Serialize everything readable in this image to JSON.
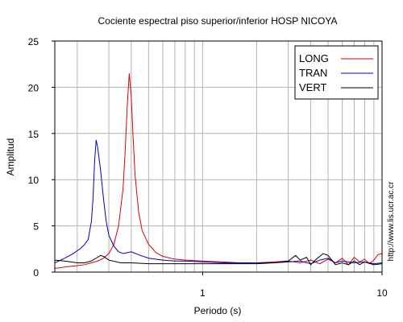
{
  "chart_data": {
    "type": "line",
    "title": "Cociente espectral piso superior/inferior  HOSP NICOYA",
    "xlabel": "Periodo (s)",
    "ylabel": "Amplitud",
    "xscale": "log",
    "xlim": [
      0.15,
      10
    ],
    "ylim": [
      0,
      25
    ],
    "x_tick_labels": [
      "1",
      "10"
    ],
    "y_tick_labels": [
      "0",
      "5",
      "10",
      "15",
      "20",
      "25"
    ],
    "grid": true,
    "legend_position": "top-right",
    "series": [
      {
        "name": "LONG",
        "color": "#dd0000",
        "points": [
          [
            0.15,
            0.4
          ],
          [
            0.18,
            0.6
          ],
          [
            0.2,
            0.7
          ],
          [
            0.22,
            0.8
          ],
          [
            0.24,
            1.0
          ],
          [
            0.26,
            1.2
          ],
          [
            0.28,
            1.5
          ],
          [
            0.3,
            2.0
          ],
          [
            0.32,
            3.0
          ],
          [
            0.34,
            5.0
          ],
          [
            0.36,
            9.0
          ],
          [
            0.37,
            13.0
          ],
          [
            0.38,
            18.0
          ],
          [
            0.39,
            21.5
          ],
          [
            0.4,
            19.0
          ],
          [
            0.41,
            14.5
          ],
          [
            0.42,
            10.5
          ],
          [
            0.44,
            6.5
          ],
          [
            0.46,
            4.5
          ],
          [
            0.5,
            3.0
          ],
          [
            0.55,
            2.1
          ],
          [
            0.6,
            1.7
          ],
          [
            0.7,
            1.4
          ],
          [
            0.8,
            1.3
          ],
          [
            1.0,
            1.2
          ],
          [
            1.3,
            1.1
          ],
          [
            1.6,
            1.0
          ],
          [
            2.0,
            1.0
          ],
          [
            2.5,
            1.1
          ],
          [
            3.0,
            1.2
          ],
          [
            3.5,
            1.0
          ],
          [
            4.0,
            1.3
          ],
          [
            4.5,
            0.9
          ],
          [
            5.0,
            1.4
          ],
          [
            5.5,
            1.0
          ],
          [
            6.0,
            1.5
          ],
          [
            6.5,
            0.8
          ],
          [
            7.0,
            1.6
          ],
          [
            7.5,
            1.1
          ],
          [
            8.0,
            1.4
          ],
          [
            8.5,
            0.9
          ],
          [
            9.0,
            1.3
          ],
          [
            9.5,
            1.9
          ],
          [
            10.0,
            2.0
          ]
        ]
      },
      {
        "name": "TRAN",
        "color": "#0000bb",
        "points": [
          [
            0.15,
            1.0
          ],
          [
            0.17,
            1.5
          ],
          [
            0.19,
            2.0
          ],
          [
            0.21,
            2.6
          ],
          [
            0.22,
            3.0
          ],
          [
            0.23,
            3.5
          ],
          [
            0.24,
            5.5
          ],
          [
            0.245,
            8.0
          ],
          [
            0.25,
            12.0
          ],
          [
            0.255,
            14.3
          ],
          [
            0.26,
            13.5
          ],
          [
            0.27,
            11.0
          ],
          [
            0.28,
            8.0
          ],
          [
            0.29,
            5.5
          ],
          [
            0.3,
            4.0
          ],
          [
            0.32,
            2.8
          ],
          [
            0.34,
            2.2
          ],
          [
            0.36,
            2.0
          ],
          [
            0.38,
            2.1
          ],
          [
            0.4,
            2.2
          ],
          [
            0.45,
            1.8
          ],
          [
            0.5,
            1.5
          ],
          [
            0.6,
            1.3
          ],
          [
            0.7,
            1.2
          ],
          [
            0.8,
            1.2
          ],
          [
            1.0,
            1.1
          ],
          [
            1.3,
            1.0
          ],
          [
            1.6,
            1.0
          ],
          [
            2.0,
            1.0
          ],
          [
            2.5,
            1.0
          ],
          [
            3.0,
            1.1
          ],
          [
            3.5,
            1.2
          ],
          [
            4.0,
            0.9
          ],
          [
            4.5,
            1.3
          ],
          [
            5.0,
            1.5
          ],
          [
            5.5,
            1.0
          ],
          [
            6.0,
            1.2
          ],
          [
            7.0,
            1.0
          ],
          [
            8.0,
            1.1
          ],
          [
            9.0,
            0.9
          ],
          [
            10.0,
            1.0
          ]
        ]
      },
      {
        "name": "VERT",
        "color": "#000000",
        "points": [
          [
            0.15,
            1.3
          ],
          [
            0.17,
            1.2
          ],
          [
            0.2,
            1.0
          ],
          [
            0.22,
            1.0
          ],
          [
            0.24,
            1.2
          ],
          [
            0.26,
            1.6
          ],
          [
            0.27,
            1.8
          ],
          [
            0.28,
            1.7
          ],
          [
            0.3,
            1.3
          ],
          [
            0.35,
            1.0
          ],
          [
            0.4,
            1.0
          ],
          [
            0.5,
            0.9
          ],
          [
            0.6,
            0.9
          ],
          [
            0.8,
            0.9
          ],
          [
            1.0,
            0.9
          ],
          [
            1.3,
            0.9
          ],
          [
            1.6,
            0.9
          ],
          [
            2.0,
            0.9
          ],
          [
            2.5,
            1.0
          ],
          [
            3.0,
            1.2
          ],
          [
            3.3,
            1.8
          ],
          [
            3.5,
            1.3
          ],
          [
            3.8,
            1.6
          ],
          [
            4.0,
            0.8
          ],
          [
            4.3,
            1.4
          ],
          [
            4.7,
            2.0
          ],
          [
            5.0,
            1.8
          ],
          [
            5.5,
            0.8
          ],
          [
            6.0,
            1.0
          ],
          [
            6.5,
            0.8
          ],
          [
            7.0,
            1.2
          ],
          [
            7.5,
            0.8
          ],
          [
            8.0,
            1.1
          ],
          [
            9.0,
            0.8
          ],
          [
            10.0,
            0.9
          ]
        ]
      }
    ]
  },
  "watermark": "http://www.lis.ucr.ac.cr"
}
